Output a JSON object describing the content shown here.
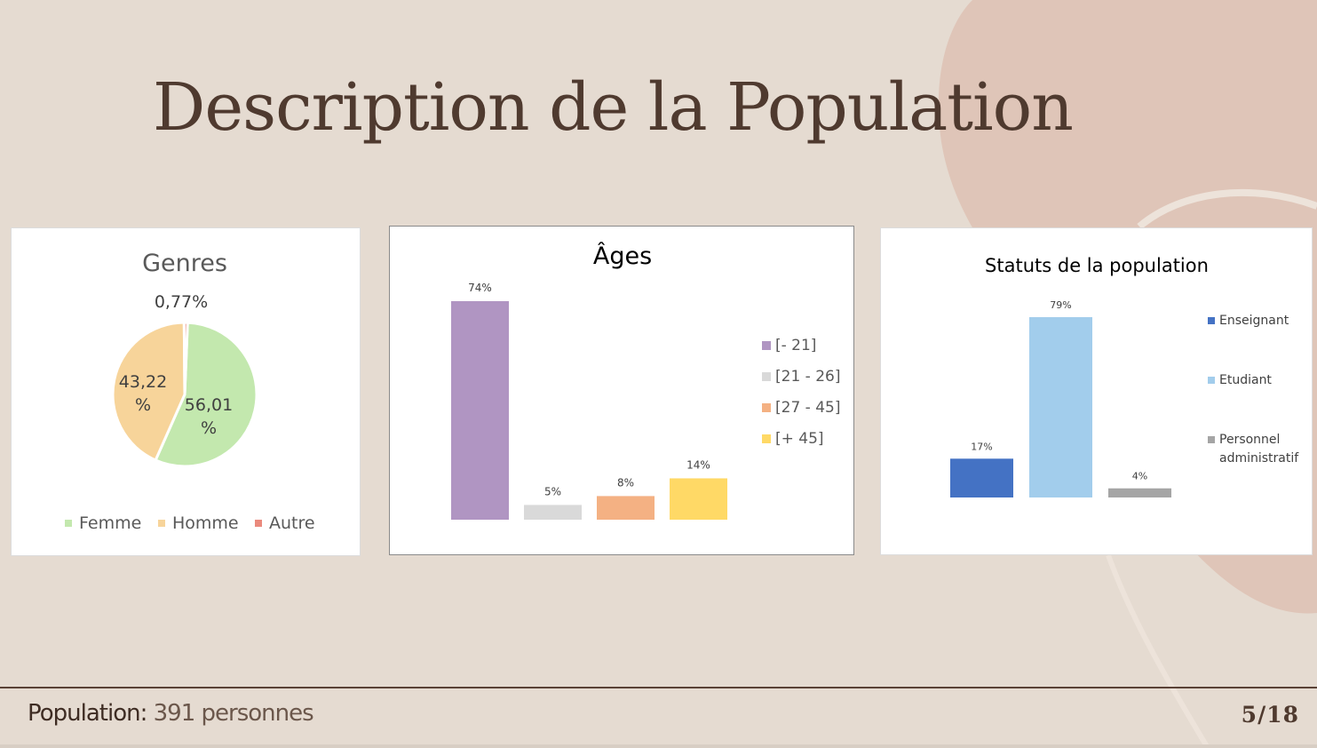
{
  "slide": {
    "title": "Description de la Population",
    "footer_label": "Population:",
    "footer_value": "391 personnes",
    "page_indicator": "5/18"
  },
  "colors": {
    "background": "#e5dbd1",
    "title": "#4f3a2f",
    "decor_blob": "#dfc5b8"
  },
  "chart_data": [
    {
      "type": "pie",
      "title": "Genres",
      "categories": [
        "Femme",
        "Homme",
        "Autre"
      ],
      "values": [
        56.01,
        43.22,
        0.77
      ],
      "data_labels": [
        "56,01 %",
        "43,22 %",
        "0,77%"
      ],
      "colors": [
        "#c3e8ae",
        "#f7d49a",
        "#ea8a7d"
      ],
      "legend": "bottom"
    },
    {
      "type": "bar",
      "title": "Âges",
      "categories": [
        "[- 21]",
        "[21 - 26]",
        "[27 - 45]",
        "[+ 45]"
      ],
      "values": [
        74,
        5,
        8,
        14
      ],
      "data_labels": [
        "74%",
        "5%",
        "8%",
        "14%"
      ],
      "colors": [
        "#b095c2",
        "#d9d9d9",
        "#f4b183",
        "#ffd966"
      ],
      "ylim": [
        0,
        74
      ],
      "legend": "right",
      "grid": false
    },
    {
      "type": "bar",
      "title": "Statuts de la population",
      "categories": [
        "Enseignant",
        "Etudiant",
        "Personnel administratif"
      ],
      "legend_lines": [
        [
          "Enseignant"
        ],
        [
          "Etudiant"
        ],
        [
          "Personnel",
          "administratif"
        ]
      ],
      "values": [
        17,
        79,
        4
      ],
      "data_labels": [
        "17%",
        "79%",
        "4%"
      ],
      "colors": [
        "#4472c4",
        "#a2cdec",
        "#a5a5a5"
      ],
      "ylim": [
        0,
        79
      ],
      "legend": "right",
      "grid": false
    }
  ]
}
